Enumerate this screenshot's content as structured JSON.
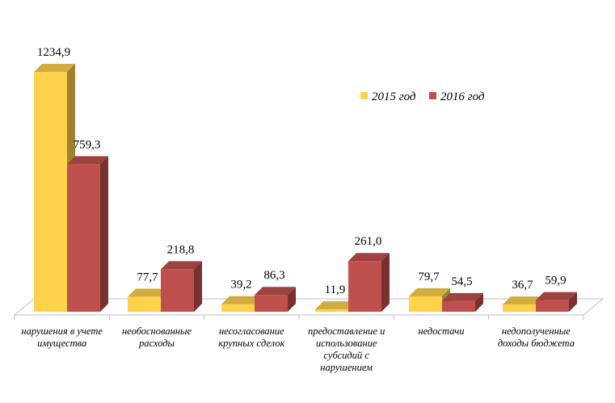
{
  "chart_data": {
    "type": "bar",
    "categories": [
      [
        "нарушения в учете",
        "имущества"
      ],
      [
        "необоснованные",
        "расходы"
      ],
      [
        "несогласование",
        "крупных сделок"
      ],
      [
        "предоставление и",
        "использование",
        "субсидий с",
        "нарушением"
      ],
      [
        "недостачи"
      ],
      [
        "недополученные",
        "доходы бюджета"
      ]
    ],
    "series": [
      {
        "name": "2015 год",
        "color": "#FFD24D",
        "values": [
          1234.9,
          77.7,
          39.2,
          11.9,
          79.7,
          36.7
        ],
        "labels": [
          "1234,9",
          "77,7",
          "39,2",
          "11,9",
          "79,7",
          "36,7"
        ]
      },
      {
        "name": "2016 год",
        "color": "#C0504D",
        "values": [
          759.3,
          218.8,
          86.3,
          261.0,
          54.5,
          59.9
        ],
        "labels": [
          "759,3",
          "218,8",
          "86,3",
          "261,0",
          "54,5",
          "59,9"
        ]
      }
    ],
    "legend_position": "top-right",
    "style": "3d-columns",
    "grid": false
  }
}
